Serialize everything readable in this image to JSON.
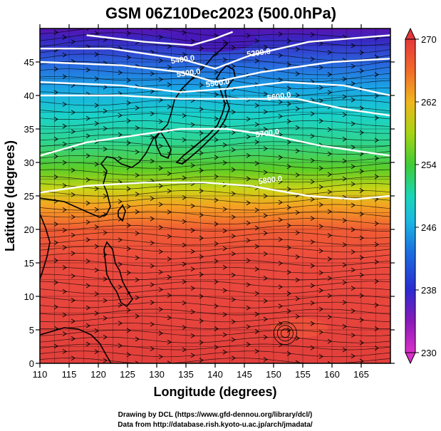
{
  "title": "GSM 06Z10Dec2023 (500.0hPa)",
  "x_axis": {
    "label": "Longitude (degrees)",
    "range": [
      110,
      170
    ],
    "ticks": [
      110,
      115,
      120,
      125,
      130,
      135,
      140,
      145,
      150,
      155,
      160,
      165
    ]
  },
  "y_axis": {
    "label": "Latitude  (degrees)",
    "range": [
      0,
      50
    ],
    "ticks": [
      0,
      5,
      10,
      15,
      20,
      25,
      30,
      35,
      40,
      45
    ]
  },
  "colorbar": {
    "min": 230,
    "max": 270,
    "tick_values": [
      230,
      238,
      246,
      254,
      262,
      270
    ],
    "tick_labels": [
      "230",
      "238",
      "246",
      "254",
      "262",
      "270"
    ],
    "colors": [
      "#d930c8",
      "#6a0fb0",
      "#1433d8",
      "#1a8de6",
      "#19d4d0",
      "#22d98e",
      "#44c92c",
      "#b4d416",
      "#f6a21a",
      "#f15a2c",
      "#ee3b3b",
      "#e5383b"
    ]
  },
  "contours": {
    "labels": [
      "5200.0",
      "5300.0",
      "5400.0",
      "5500.0",
      "5600.0",
      "5700.0",
      "5800.0"
    ]
  },
  "credits": {
    "line1": "Drawing by DCL (https://www.gfd-dennou.org/library/dcl/)",
    "line2": "Data from http://database.rish.kyoto-u.ac.jp/arch/jmadata/"
  }
}
